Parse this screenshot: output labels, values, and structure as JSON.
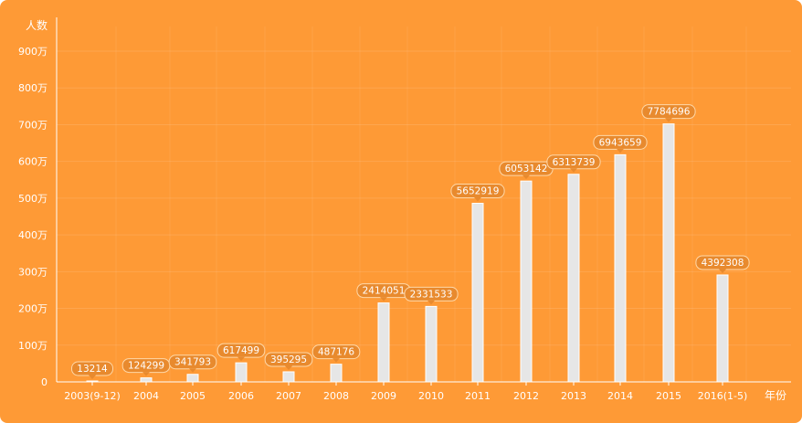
{
  "chart_data": {
    "type": "bar",
    "ylabel": "人数",
    "xlabel": "年份",
    "ylim": [
      0,
      9000000
    ],
    "y_ticks": [
      {
        "label": "0",
        "value": 0
      },
      {
        "label": "100万",
        "value": 1000000
      },
      {
        "label": "200万",
        "value": 2000000
      },
      {
        "label": "300万",
        "value": 3000000
      },
      {
        "label": "400万",
        "value": 4000000
      },
      {
        "label": "500万",
        "value": 5000000
      },
      {
        "label": "600万",
        "value": 6000000
      },
      {
        "label": "700万",
        "value": 7000000
      },
      {
        "label": "800万",
        "value": 8000000
      },
      {
        "label": "900万",
        "value": 9000000
      }
    ],
    "categories": [
      "2003(9-12)",
      "2004",
      "2005",
      "2006",
      "2007",
      "2008",
      "2009",
      "2010",
      "2011",
      "2012",
      "2013",
      "2014",
      "2015",
      "2016(1-5)"
    ],
    "values": [
      13214,
      124299,
      341793,
      617499,
      395295,
      487176,
      2414051,
      2331533,
      5652919,
      6053142,
      6313739,
      6943659,
      7784696,
      4392308
    ],
    "bar_heights": [
      0.0003,
      0.0122,
      0.0228,
      0.0577,
      0.0305,
      0.0535,
      0.2387,
      0.2282,
      0.54,
      0.6073,
      0.6277,
      0.6868,
      0.78,
      0.3233
    ],
    "grid": true,
    "colors": {
      "background": "#fe9a36",
      "bar_fill": "#e6e6e6",
      "bar_stroke": "#ffffff",
      "label_bubble": "#e88a2e",
      "label_bubble_stroke": "#ffd8a8",
      "text": "#ffffff"
    }
  }
}
